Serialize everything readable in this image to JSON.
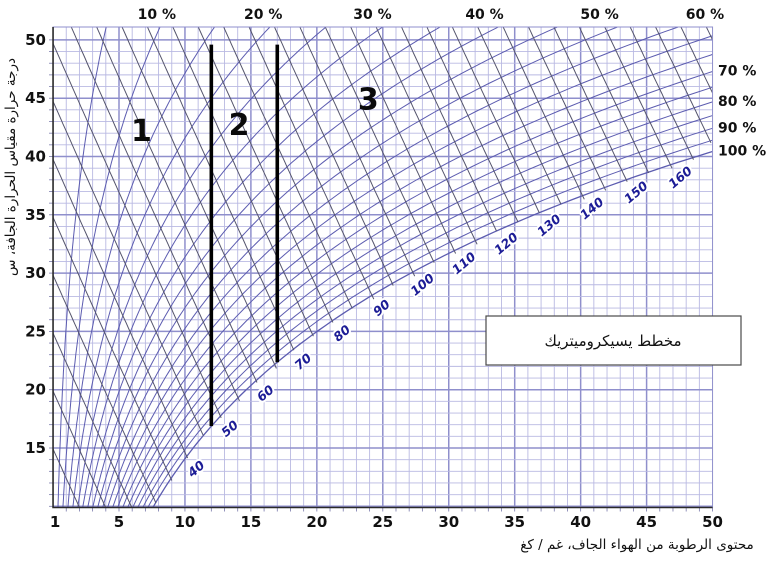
{
  "title_box": {
    "text": "مخطط يسيكروميتريك"
  },
  "axes": {
    "x": {
      "title": "محتوى الرطوبة من الهواء الجاف، غم / كغ",
      "ticks": [
        1,
        5,
        10,
        15,
        20,
        25,
        30,
        35,
        40,
        45,
        50
      ],
      "range": [
        0,
        50
      ]
    },
    "y": {
      "title": "درجة حرارة مقياس الحرارة الجافة، س",
      "ticks": [
        50,
        45,
        40,
        35,
        30,
        25,
        20,
        15
      ],
      "range": [
        9.9,
        51.1
      ]
    }
  },
  "chart_data": {
    "type": "line",
    "subtype": "psychrometric",
    "title": "مخطط يسيكروميتريك",
    "xlabel": "محتوى الرطوبة من الهواء الجاف، غم / كغ",
    "ylabel": "درجة حرارة مقياس الحرارة الجافة، س",
    "xlim": [
      0,
      50
    ],
    "ylim": [
      9.9,
      51.1
    ],
    "grid": "on",
    "relative_humidity_curves_percent": [
      5,
      10,
      15,
      20,
      25,
      30,
      35,
      40,
      45,
      50,
      55,
      60,
      65,
      70,
      75,
      80,
      85,
      90,
      95,
      100
    ],
    "rh_labels_top": [
      {
        "value": 10,
        "text": "10 %"
      },
      {
        "value": 20,
        "text": "20 %"
      },
      {
        "value": 30,
        "text": "30 %"
      },
      {
        "value": 40,
        "text": "40 %"
      },
      {
        "value": 50,
        "text": "50 %"
      },
      {
        "value": 60,
        "text": "60 %"
      }
    ],
    "rh_labels_right": [
      {
        "value": 70,
        "text": "70 %"
      },
      {
        "value": 80,
        "text": "80 %"
      },
      {
        "value": 90,
        "text": "90 %"
      },
      {
        "value": 100,
        "text": "100 %"
      }
    ],
    "enthalpy_lines_kj_per_kg": {
      "min": 10,
      "max": 180,
      "step": 5
    },
    "enthalpy_labels": [
      40,
      50,
      60,
      70,
      80,
      90,
      100,
      110,
      120,
      130,
      140,
      150,
      160
    ],
    "saturation_curve_points_w_T": [
      [
        7.5,
        9.9
      ],
      [
        10,
        14.1
      ],
      [
        15,
        20.4
      ],
      [
        20,
        25.0
      ],
      [
        25,
        28.7
      ],
      [
        30,
        31.7
      ],
      [
        35,
        34.3
      ],
      [
        40,
        36.6
      ],
      [
        45,
        38.6
      ],
      [
        50,
        40.4
      ]
    ],
    "zone_boundaries": [
      {
        "w": 12,
        "from_T": 49.6,
        "to": "saturation"
      },
      {
        "w": 17,
        "from_T": 49.6,
        "to": "saturation"
      }
    ],
    "zones": [
      {
        "label": "1",
        "w": 6.7,
        "T": 42.2
      },
      {
        "label": "2",
        "w": 14.1,
        "T": 42.7
      },
      {
        "label": "3",
        "w": 23.9,
        "T": 44.9
      }
    ],
    "colors": {
      "grid_minor": "#b9b9e2",
      "grid_major": "#8f8fcc",
      "rh_curve": "#5c5cb0",
      "enthalpy_line": "#54546c",
      "enthalpy_label": "#1c1c96",
      "zone_line": "#000000",
      "axis_line": "#2a2a2a",
      "text": "#111111"
    }
  }
}
